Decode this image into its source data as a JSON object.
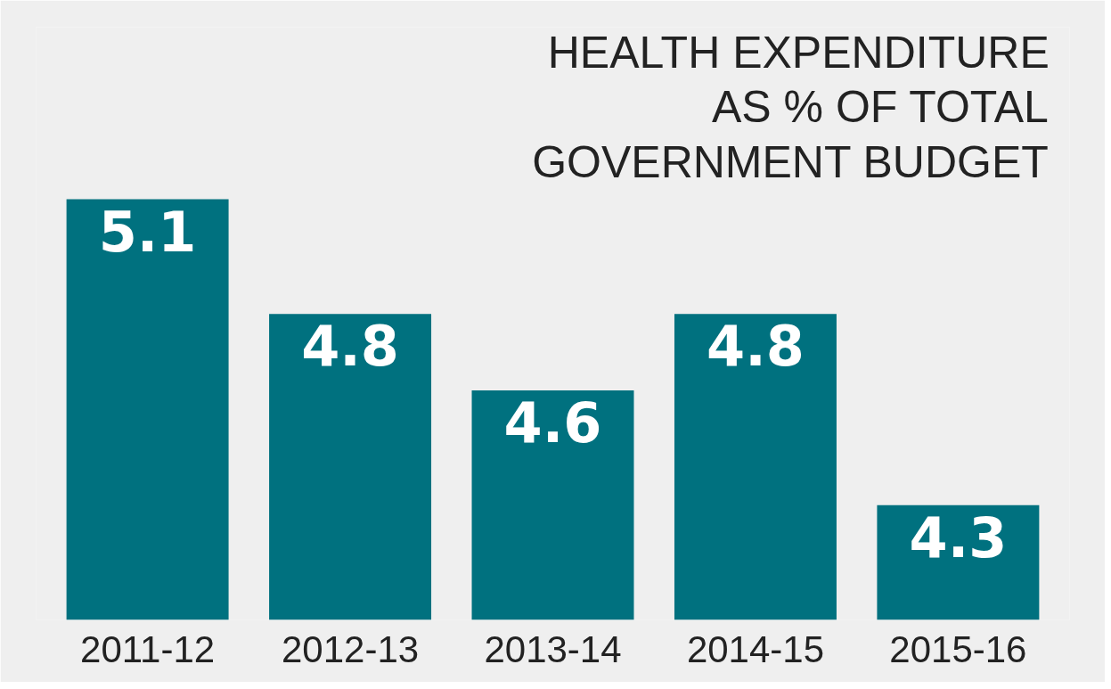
{
  "chart_data": {
    "type": "bar",
    "title": "HEALTH EXPENDITURE AS % OF TOTAL GOVERNMENT BUDGET",
    "categories": [
      "2011-12",
      "2012-13",
      "2013-14",
      "2014-15",
      "2015-16"
    ],
    "values": [
      5.1,
      4.8,
      4.6,
      4.8,
      4.3
    ],
    "color": "#00717f",
    "ylim": [
      4.0,
      5.55
    ],
    "data_labels": true,
    "grid": false
  }
}
